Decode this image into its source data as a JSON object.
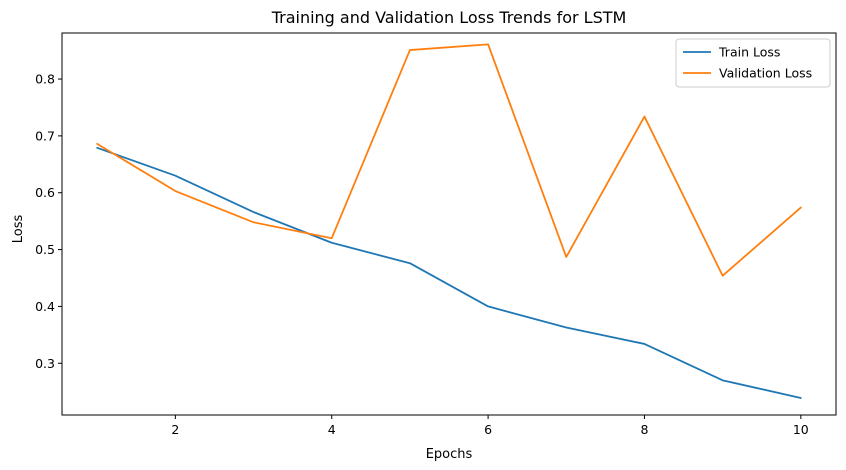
{
  "chart_data": {
    "type": "line",
    "title": "Training and Validation Loss Trends for LSTM",
    "xlabel": "Epochs",
    "ylabel": "Loss",
    "x": [
      1,
      2,
      3,
      4,
      5,
      6,
      7,
      8,
      9,
      10
    ],
    "xlim": [
      0.55,
      10.45
    ],
    "ylim": [
      0.209,
      0.881
    ],
    "xticks": [
      2,
      4,
      6,
      8,
      10
    ],
    "yticks": [
      0.3,
      0.4,
      0.5,
      0.6,
      0.7,
      0.8
    ],
    "xtick_labels": [
      "2",
      "4",
      "6",
      "8",
      "10"
    ],
    "ytick_labels": [
      "0.3",
      "0.4",
      "0.5",
      "0.6",
      "0.7",
      "0.8"
    ],
    "grid": false,
    "legend_position": "upper right",
    "series": [
      {
        "name": "Train Loss",
        "color": "#1f77b4",
        "values": [
          0.679,
          0.63,
          0.566,
          0.512,
          0.476,
          0.4,
          0.363,
          0.334,
          0.27,
          0.239
        ]
      },
      {
        "name": "Validation Loss",
        "color": "#ff7f0e",
        "values": [
          0.686,
          0.603,
          0.548,
          0.52,
          0.851,
          0.861,
          0.487,
          0.734,
          0.454,
          0.574
        ]
      }
    ]
  }
}
